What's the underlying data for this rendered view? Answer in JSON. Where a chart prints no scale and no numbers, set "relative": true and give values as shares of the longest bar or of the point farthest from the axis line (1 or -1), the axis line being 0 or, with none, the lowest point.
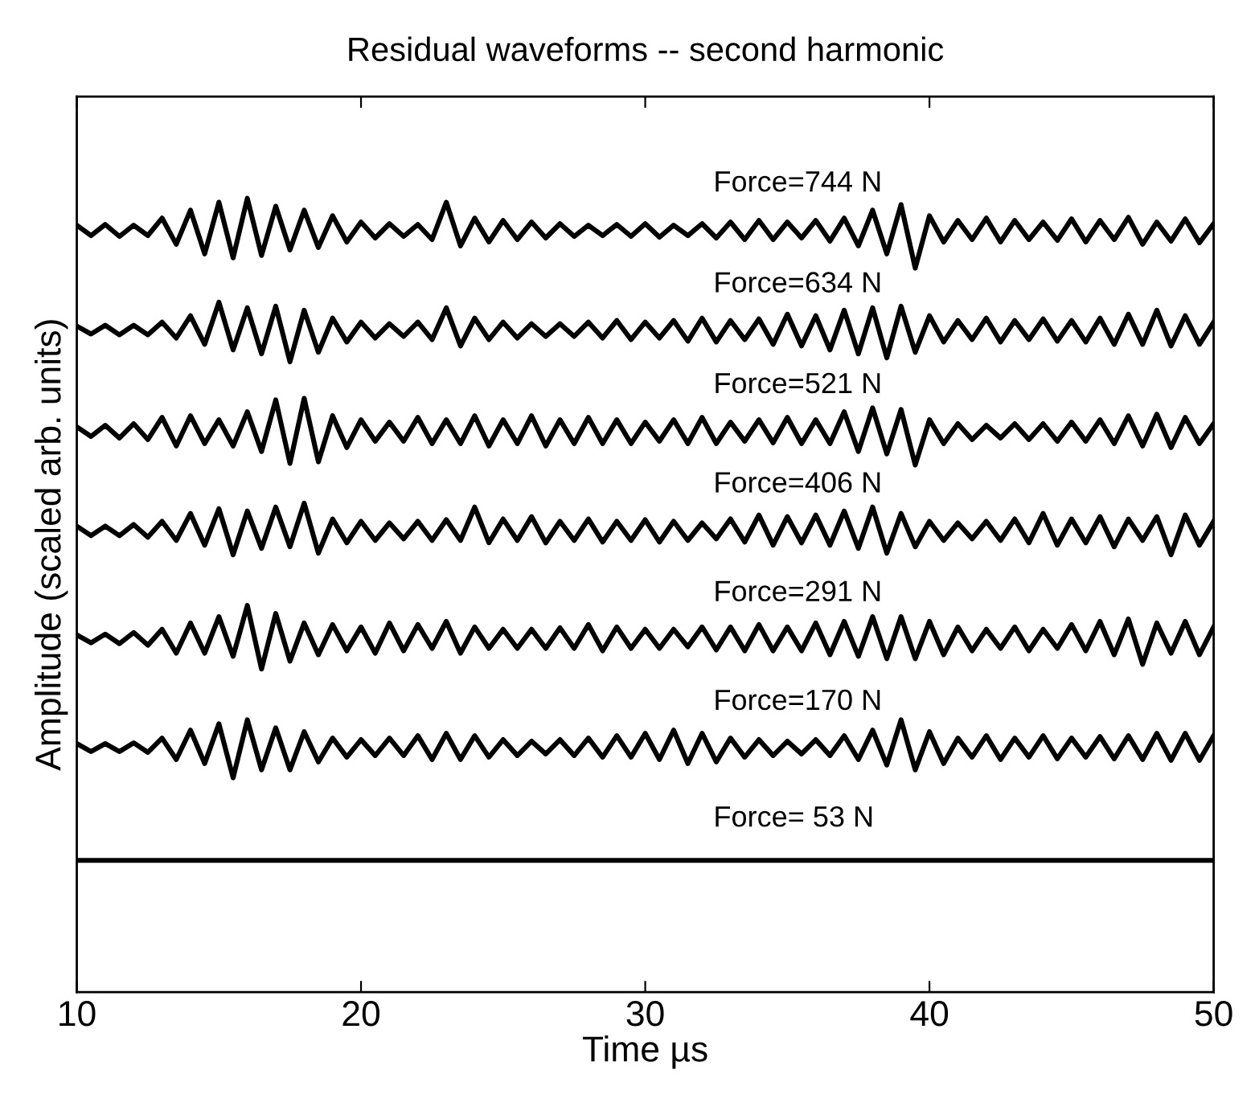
{
  "chart_data": {
    "type": "line",
    "title": "Residual waveforms -- second harmonic",
    "xlabel": "Time µs",
    "ylabel": "Amplitude (scaled arb. units)",
    "relative": true,
    "grid": false,
    "xlim": [
      10,
      50
    ],
    "xticks": [
      10,
      20,
      30,
      40,
      50
    ],
    "x": [
      10,
      10.5,
      11,
      11.5,
      12,
      12.5,
      13,
      13.5,
      14,
      14.5,
      15,
      15.5,
      16,
      16.5,
      17,
      17.5,
      18,
      18.5,
      19,
      19.5,
      20,
      20.5,
      21,
      21.5,
      22,
      22.5,
      23,
      23.5,
      24,
      24.5,
      25,
      25.5,
      26,
      26.5,
      27,
      27.5,
      28,
      28.5,
      29,
      29.5,
      30,
      30.5,
      31,
      31.5,
      32,
      32.5,
      33,
      33.5,
      34,
      34.5,
      35,
      35.5,
      36,
      36.5,
      37,
      37.5,
      38,
      38.5,
      39,
      39.5,
      40,
      40.5,
      41,
      41.5,
      42,
      42.5,
      43,
      43.5,
      44,
      44.5,
      45,
      45.5,
      46,
      46.5,
      47,
      47.5,
      48,
      48.5,
      49,
      49.5,
      50
    ],
    "series": [
      {
        "name": "Force=744 N",
        "color": "#000000",
        "values": [
          0.966,
          0.953,
          0.967,
          0.952,
          0.966,
          0.953,
          0.975,
          0.942,
          0.985,
          0.93,
          0.995,
          0.925,
          1.0,
          0.928,
          0.99,
          0.935,
          0.985,
          0.938,
          0.978,
          0.945,
          0.97,
          0.95,
          0.968,
          0.952,
          0.967,
          0.948,
          0.995,
          0.94,
          0.975,
          0.945,
          0.972,
          0.948,
          0.97,
          0.95,
          0.968,
          0.952,
          0.966,
          0.953,
          0.967,
          0.952,
          0.968,
          0.951,
          0.966,
          0.953,
          0.968,
          0.95,
          0.97,
          0.948,
          0.972,
          0.948,
          0.97,
          0.95,
          0.972,
          0.946,
          0.975,
          0.94,
          0.985,
          0.93,
          0.992,
          0.912,
          0.978,
          0.945,
          0.972,
          0.948,
          0.975,
          0.945,
          0.972,
          0.948,
          0.97,
          0.947,
          0.974,
          0.945,
          0.972,
          0.948,
          0.976,
          0.942,
          0.97,
          0.946,
          0.974,
          0.944,
          0.968
        ]
      },
      {
        "name": "Force=634 N",
        "color": "#000000",
        "values": [
          0.839,
          0.829,
          0.84,
          0.828,
          0.84,
          0.828,
          0.844,
          0.824,
          0.852,
          0.816,
          0.869,
          0.809,
          0.862,
          0.804,
          0.864,
          0.794,
          0.859,
          0.806,
          0.849,
          0.819,
          0.844,
          0.824,
          0.842,
          0.826,
          0.844,
          0.822,
          0.862,
          0.814,
          0.849,
          0.822,
          0.844,
          0.824,
          0.842,
          0.826,
          0.842,
          0.826,
          0.844,
          0.824,
          0.846,
          0.822,
          0.844,
          0.824,
          0.846,
          0.82,
          0.849,
          0.819,
          0.846,
          0.822,
          0.848,
          0.816,
          0.854,
          0.814,
          0.852,
          0.809,
          0.859,
          0.804,
          0.862,
          0.799,
          0.864,
          0.806,
          0.852,
          0.819,
          0.846,
          0.822,
          0.849,
          0.819,
          0.846,
          0.822,
          0.848,
          0.82,
          0.846,
          0.819,
          0.849,
          0.816,
          0.854,
          0.816,
          0.859,
          0.814,
          0.852,
          0.816,
          0.844
        ]
      },
      {
        "name": "Force=521 N",
        "color": "#000000",
        "values": [
          0.712,
          0.7,
          0.714,
          0.698,
          0.716,
          0.696,
          0.724,
          0.688,
          0.726,
          0.691,
          0.721,
          0.688,
          0.731,
          0.681,
          0.746,
          0.666,
          0.748,
          0.668,
          0.726,
          0.686,
          0.721,
          0.694,
          0.718,
          0.694,
          0.724,
          0.691,
          0.721,
          0.691,
          0.726,
          0.688,
          0.721,
          0.691,
          0.726,
          0.688,
          0.721,
          0.691,
          0.724,
          0.691,
          0.721,
          0.691,
          0.718,
          0.694,
          0.721,
          0.691,
          0.724,
          0.691,
          0.718,
          0.694,
          0.721,
          0.692,
          0.724,
          0.691,
          0.721,
          0.691,
          0.731,
          0.681,
          0.736,
          0.678,
          0.734,
          0.664,
          0.721,
          0.691,
          0.716,
          0.696,
          0.714,
          0.698,
          0.716,
          0.696,
          0.716,
          0.694,
          0.718,
          0.694,
          0.721,
          0.691,
          0.726,
          0.688,
          0.728,
          0.686,
          0.724,
          0.691,
          0.716
        ]
      },
      {
        "name": "Force=406 N",
        "color": "#000000",
        "values": [
          0.587,
          0.575,
          0.587,
          0.575,
          0.589,
          0.573,
          0.593,
          0.569,
          0.603,
          0.563,
          0.609,
          0.551,
          0.606,
          0.559,
          0.611,
          0.561,
          0.616,
          0.553,
          0.596,
          0.566,
          0.593,
          0.569,
          0.591,
          0.571,
          0.593,
          0.569,
          0.595,
          0.569,
          0.611,
          0.566,
          0.596,
          0.569,
          0.599,
          0.566,
          0.593,
          0.569,
          0.596,
          0.567,
          0.593,
          0.569,
          0.595,
          0.567,
          0.593,
          0.569,
          0.591,
          0.571,
          0.596,
          0.567,
          0.601,
          0.563,
          0.599,
          0.566,
          0.601,
          0.563,
          0.606,
          0.559,
          0.611,
          0.553,
          0.603,
          0.561,
          0.593,
          0.569,
          0.591,
          0.571,
          0.593,
          0.569,
          0.596,
          0.566,
          0.603,
          0.563,
          0.596,
          0.566,
          0.599,
          0.561,
          0.596,
          0.569,
          0.599,
          0.551,
          0.601,
          0.563,
          0.593
        ]
      },
      {
        "name": "Force=291 N",
        "color": "#000000",
        "values": [
          0.45,
          0.44,
          0.451,
          0.439,
          0.453,
          0.437,
          0.457,
          0.427,
          0.465,
          0.427,
          0.473,
          0.423,
          0.487,
          0.407,
          0.477,
          0.417,
          0.465,
          0.425,
          0.463,
          0.43,
          0.46,
          0.427,
          0.465,
          0.43,
          0.463,
          0.433,
          0.467,
          0.427,
          0.46,
          0.433,
          0.457,
          0.433,
          0.457,
          0.433,
          0.459,
          0.433,
          0.463,
          0.43,
          0.46,
          0.433,
          0.457,
          0.433,
          0.457,
          0.435,
          0.46,
          0.431,
          0.46,
          0.43,
          0.463,
          0.43,
          0.46,
          0.43,
          0.465,
          0.425,
          0.467,
          0.423,
          0.473,
          0.42,
          0.473,
          0.42,
          0.467,
          0.425,
          0.46,
          0.43,
          0.457,
          0.433,
          0.46,
          0.43,
          0.457,
          0.433,
          0.463,
          0.43,
          0.467,
          0.425,
          0.47,
          0.413,
          0.465,
          0.427,
          0.467,
          0.425,
          0.46
        ]
      },
      {
        "name": "Force=170 N",
        "color": "#000000",
        "values": [
          0.313,
          0.303,
          0.313,
          0.303,
          0.314,
          0.302,
          0.32,
          0.293,
          0.33,
          0.288,
          0.338,
          0.27,
          0.343,
          0.28,
          0.333,
          0.28,
          0.328,
          0.29,
          0.32,
          0.296,
          0.318,
          0.298,
          0.32,
          0.298,
          0.323,
          0.293,
          0.326,
          0.293,
          0.323,
          0.296,
          0.318,
          0.298,
          0.316,
          0.3,
          0.318,
          0.298,
          0.32,
          0.296,
          0.323,
          0.296,
          0.326,
          0.293,
          0.33,
          0.288,
          0.326,
          0.29,
          0.32,
          0.296,
          0.318,
          0.298,
          0.316,
          0.3,
          0.318,
          0.298,
          0.323,
          0.293,
          0.33,
          0.286,
          0.343,
          0.28,
          0.328,
          0.288,
          0.32,
          0.296,
          0.323,
          0.293,
          0.32,
          0.296,
          0.323,
          0.294,
          0.32,
          0.296,
          0.322,
          0.294,
          0.323,
          0.293,
          0.326,
          0.292,
          0.326,
          0.292,
          0.323
        ]
      },
      {
        "name": "Force= 53 N",
        "color": "#000000",
        "x": [
          10,
          50
        ],
        "values": [
          0.166,
          0.166
        ]
      }
    ]
  }
}
